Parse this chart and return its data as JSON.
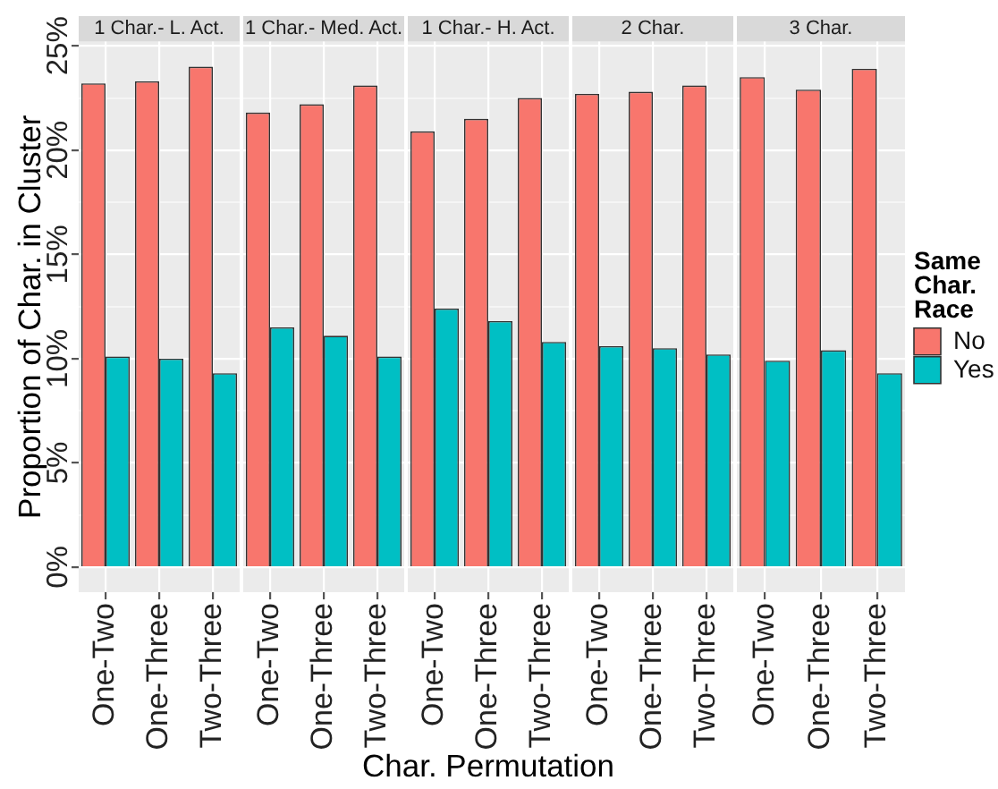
{
  "chart_data": [
    {
      "type": "bar",
      "title": "1 Char.- L. Act.",
      "ylabel": "Proportion of Char. in Cluster",
      "categories": [
        "One-Two",
        "One-Three",
        "Two-Three"
      ],
      "series": [
        {
          "color": "#f8766d",
          "values": [
            23.2,
            23.3,
            24.0
          ]
        },
        {
          "color": "#00bfc4",
          "values": [
            10.1,
            10.0,
            9.3
          ]
        }
      ],
      "ylim": [
        -1.2,
        25.2
      ],
      "yticks": [
        {
          "value": 0,
          "label": "0%"
        },
        {
          "value": 2.5,
          "label": null
        },
        {
          "value": 5,
          "label": "5%"
        },
        {
          "value": 7.5,
          "label": null
        },
        {
          "value": 10,
          "label": "10%"
        },
        {
          "value": 12.5,
          "label": null
        },
        {
          "value": 15,
          "label": "15%"
        },
        {
          "value": 17.5,
          "label": null
        },
        {
          "value": 20,
          "label": "20%"
        },
        {
          "value": 22.5,
          "label": null
        },
        {
          "value": 25,
          "label": "25%"
        }
      ],
      "grid": true
    },
    {
      "type": "bar",
      "title": "1 Char.- Med. Act.",
      "categories": [
        "One-Two",
        "One-Three",
        "Two-Three"
      ],
      "series": [
        {
          "color": "#f8766d",
          "values": [
            21.8,
            22.2,
            23.1
          ]
        },
        {
          "color": "#00bfc4",
          "values": [
            11.5,
            11.1,
            10.1
          ]
        }
      ],
      "ylim": [
        -1.2,
        25.2
      ],
      "yticks": [
        {
          "value": 0,
          "label": null
        },
        {
          "value": 2.5,
          "label": null
        },
        {
          "value": 5,
          "label": null
        },
        {
          "value": 7.5,
          "label": null
        },
        {
          "value": 10,
          "label": null
        },
        {
          "value": 12.5,
          "label": null
        },
        {
          "value": 15,
          "label": null
        },
        {
          "value": 17.5,
          "label": null
        },
        {
          "value": 20,
          "label": null
        },
        {
          "value": 22.5,
          "label": null
        },
        {
          "value": 25,
          "label": null
        }
      ],
      "grid": true,
      "tick_labels": "x"
    },
    {
      "type": "bar",
      "title": "1 Char.- H. Act.",
      "xlabel": "Char. Permutation",
      "categories": [
        "One-Two",
        "One-Three",
        "Two-Three"
      ],
      "series": [
        {
          "color": "#f8766d",
          "values": [
            20.9,
            21.5,
            22.5
          ]
        },
        {
          "color": "#00bfc4",
          "values": [
            12.4,
            11.8,
            10.8
          ]
        }
      ],
      "ylim": [
        -1.2,
        25.2
      ],
      "yticks": [
        {
          "value": 0,
          "label": null
        },
        {
          "value": 2.5,
          "label": null
        },
        {
          "value": 5,
          "label": null
        },
        {
          "value": 7.5,
          "label": null
        },
        {
          "value": 10,
          "label": null
        },
        {
          "value": 12.5,
          "label": null
        },
        {
          "value": 15,
          "label": null
        },
        {
          "value": 17.5,
          "label": null
        },
        {
          "value": 20,
          "label": null
        },
        {
          "value": 22.5,
          "label": null
        },
        {
          "value": 25,
          "label": null
        }
      ],
      "grid": true,
      "tick_labels": "x"
    },
    {
      "type": "bar",
      "title": "2 Char.",
      "categories": [
        "One-Two",
        "One-Three",
        "Two-Three"
      ],
      "series": [
        {
          "color": "#f8766d",
          "values": [
            22.7,
            22.8,
            23.1
          ]
        },
        {
          "color": "#00bfc4",
          "values": [
            10.6,
            10.5,
            10.2
          ]
        }
      ],
      "ylim": [
        -1.2,
        25.2
      ],
      "yticks": [
        {
          "value": 0,
          "label": null
        },
        {
          "value": 2.5,
          "label": null
        },
        {
          "value": 5,
          "label": null
        },
        {
          "value": 7.5,
          "label": null
        },
        {
          "value": 10,
          "label": null
        },
        {
          "value": 12.5,
          "label": null
        },
        {
          "value": 15,
          "label": null
        },
        {
          "value": 17.5,
          "label": null
        },
        {
          "value": 20,
          "label": null
        },
        {
          "value": 22.5,
          "label": null
        },
        {
          "value": 25,
          "label": null
        }
      ],
      "grid": true,
      "tick_labels": "x"
    },
    {
      "type": "bar",
      "title": "3 Char.",
      "categories": [
        "One-Two",
        "One-Three",
        "Two-Three"
      ],
      "series": [
        {
          "name": "No",
          "color": "#f8766d",
          "values": [
            23.5,
            22.9,
            23.9
          ]
        },
        {
          "name": "Yes",
          "color": "#00bfc4",
          "values": [
            9.9,
            10.4,
            9.3
          ]
        }
      ],
      "ylim": [
        -1.2,
        25.2
      ],
      "yticks": [
        {
          "value": 0,
          "label": null
        },
        {
          "value": 2.5,
          "label": null
        },
        {
          "value": 5,
          "label": null
        },
        {
          "value": 7.5,
          "label": null
        },
        {
          "value": 10,
          "label": null
        },
        {
          "value": 12.5,
          "label": null
        },
        {
          "value": 15,
          "label": null
        },
        {
          "value": 17.5,
          "label": null
        },
        {
          "value": 20,
          "label": null
        },
        {
          "value": 22.5,
          "label": null
        },
        {
          "value": 25,
          "label": null
        }
      ],
      "grid": true,
      "tick_labels": "x",
      "legend": "right",
      "legend_title": "Same Char. Race"
    }
  ]
}
